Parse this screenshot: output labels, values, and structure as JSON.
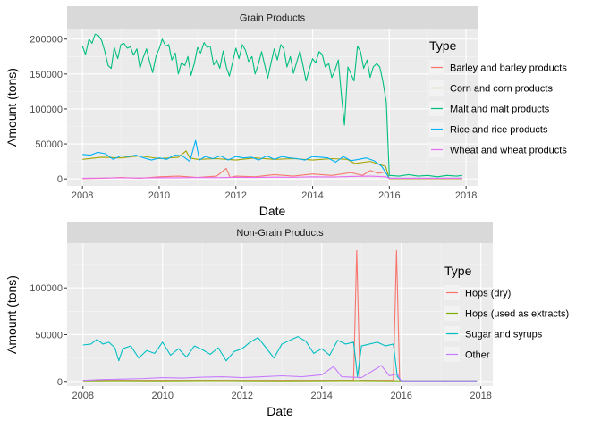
{
  "chart_data": [
    {
      "type": "line",
      "strip_title": "Grain Products",
      "xlabel": "Date",
      "ylabel": "Amount (tons)",
      "xlim": [
        2007.6,
        2018.3
      ],
      "ylim": [
        -10000,
        215000
      ],
      "x_ticks": [
        2008,
        2010,
        2012,
        2014,
        2016,
        2018
      ],
      "y_ticks": [
        0,
        50000,
        100000,
        150000,
        200000
      ],
      "legend_title": "Type",
      "legend_position": "right",
      "series": [
        {
          "name": "Barley and barley products",
          "color": "#F8766D",
          "x": [
            2008,
            2008.5,
            2009,
            2009.5,
            2010,
            2010.5,
            2011,
            2011.5,
            2011.75,
            2011.85,
            2012,
            2012.5,
            2013,
            2013.5,
            2014,
            2014.5,
            2015,
            2015.3,
            2015.5,
            2015.7,
            2015.9,
            2016,
            2016.5,
            2017,
            2017.5,
            2017.9
          ],
          "y": [
            500,
            1000,
            2000,
            1000,
            3000,
            4000,
            2000,
            4000,
            15000,
            2000,
            4000,
            3000,
            6000,
            4000,
            7000,
            5000,
            9000,
            5000,
            12000,
            8000,
            10000,
            500,
            500,
            500,
            500,
            500
          ]
        },
        {
          "name": "Corn and corn products",
          "color": "#A3A500",
          "x": [
            2008,
            2008.5,
            2009,
            2009.5,
            2010,
            2010.5,
            2010.7,
            2010.8,
            2011,
            2011.5,
            2012,
            2012.5,
            2013,
            2013.5,
            2014,
            2014.5,
            2014.9,
            2015.1,
            2015.5,
            2015.9,
            2016,
            2016.5,
            2017,
            2017.5,
            2017.9
          ],
          "y": [
            28000,
            31000,
            30000,
            33000,
            29000,
            31000,
            40000,
            30000,
            28000,
            29000,
            27000,
            30000,
            28000,
            29000,
            27000,
            29000,
            28000,
            22000,
            25000,
            18000,
            500,
            500,
            500,
            500,
            500
          ]
        },
        {
          "name": "Malt and malt products",
          "color": "#00BF7D",
          "x": [
            2008,
            2008.08,
            2008.17,
            2008.25,
            2008.33,
            2008.42,
            2008.5,
            2008.58,
            2008.67,
            2008.75,
            2008.83,
            2008.92,
            2009,
            2009.08,
            2009.17,
            2009.25,
            2009.33,
            2009.42,
            2009.5,
            2009.58,
            2009.67,
            2009.75,
            2009.83,
            2009.92,
            2010,
            2010.08,
            2010.17,
            2010.25,
            2010.33,
            2010.42,
            2010.5,
            2010.58,
            2010.67,
            2010.75,
            2010.83,
            2010.92,
            2011,
            2011.08,
            2011.17,
            2011.25,
            2011.33,
            2011.42,
            2011.5,
            2011.58,
            2011.67,
            2011.75,
            2011.83,
            2011.92,
            2012,
            2012.08,
            2012.17,
            2012.25,
            2012.33,
            2012.42,
            2012.5,
            2012.58,
            2012.67,
            2012.75,
            2012.83,
            2012.92,
            2013,
            2013.08,
            2013.17,
            2013.25,
            2013.33,
            2013.42,
            2013.5,
            2013.58,
            2013.67,
            2013.75,
            2013.83,
            2013.92,
            2014,
            2014.08,
            2014.17,
            2014.25,
            2014.33,
            2014.42,
            2014.5,
            2014.58,
            2014.67,
            2014.75,
            2014.83,
            2014.92,
            2015,
            2015.08,
            2015.17,
            2015.25,
            2015.33,
            2015.42,
            2015.5,
            2015.58,
            2015.67,
            2015.75,
            2015.83,
            2015.92,
            2016,
            2016.25,
            2016.5,
            2016.75,
            2017,
            2017.25,
            2017.5,
            2017.75,
            2017.9
          ],
          "y": [
            190000,
            178000,
            200000,
            194000,
            207000,
            205000,
            198000,
            183000,
            162000,
            158000,
            188000,
            172000,
            192000,
            194000,
            187000,
            189000,
            177000,
            186000,
            158000,
            173000,
            186000,
            168000,
            152000,
            176000,
            186000,
            200000,
            190000,
            192000,
            170000,
            180000,
            150000,
            166000,
            162000,
            175000,
            148000,
            166000,
            188000,
            180000,
            195000,
            188000,
            190000,
            163000,
            170000,
            158000,
            183000,
            160000,
            147000,
            168000,
            187000,
            172000,
            192000,
            184000,
            168000,
            175000,
            150000,
            163000,
            182000,
            163000,
            144000,
            167000,
            186000,
            170000,
            192000,
            186000,
            160000,
            175000,
            151000,
            166000,
            183000,
            162000,
            140000,
            158000,
            172000,
            166000,
            182000,
            178000,
            160000,
            165000,
            145000,
            155000,
            170000,
            120000,
            77000,
            160000,
            150000,
            140000,
            190000,
            182000,
            158000,
            170000,
            145000,
            160000,
            165000,
            160000,
            140000,
            110000,
            5000,
            4000,
            6000,
            4000,
            5000,
            3000,
            5000,
            4000,
            5000
          ]
        },
        {
          "name": "Rice and rice products",
          "color": "#00B0F6",
          "x": [
            2008,
            2008.2,
            2008.4,
            2008.6,
            2008.8,
            2009,
            2009.2,
            2009.4,
            2009.6,
            2009.8,
            2010,
            2010.2,
            2010.4,
            2010.6,
            2010.8,
            2010.95,
            2011.05,
            2011.2,
            2011.4,
            2011.6,
            2011.8,
            2012,
            2012.2,
            2012.4,
            2012.6,
            2012.8,
            2013,
            2013.2,
            2013.4,
            2013.6,
            2013.8,
            2014,
            2014.2,
            2014.4,
            2014.6,
            2014.8,
            2015,
            2015.2,
            2015.4,
            2015.6,
            2015.8,
            2016,
            2016.5,
            2017,
            2017.5,
            2017.9
          ],
          "y": [
            35000,
            34000,
            38000,
            36000,
            28000,
            33000,
            32000,
            34000,
            30000,
            27000,
            30000,
            28000,
            34000,
            33000,
            25000,
            55000,
            27000,
            32000,
            29000,
            33000,
            27000,
            32000,
            30000,
            31000,
            27000,
            33000,
            28000,
            32000,
            30000,
            29000,
            27000,
            32000,
            31000,
            30000,
            24000,
            32000,
            26000,
            28000,
            30000,
            26000,
            18000,
            1000,
            1000,
            1000,
            1000,
            1000
          ]
        },
        {
          "name": "Wheat and wheat products",
          "color": "#E76BF3",
          "x": [
            2008,
            2008.5,
            2009,
            2009.5,
            2010,
            2010.5,
            2011,
            2011.5,
            2012,
            2012.5,
            2013,
            2013.5,
            2014,
            2014.5,
            2015,
            2015.5,
            2015.9,
            2016,
            2016.5,
            2017,
            2017.5,
            2017.9
          ],
          "y": [
            1000,
            1200,
            1500,
            1300,
            1800,
            1600,
            2000,
            1800,
            2200,
            2000,
            2500,
            2300,
            3000,
            2700,
            3500,
            4000,
            3000,
            1000,
            1000,
            1000,
            1000,
            1000
          ]
        }
      ]
    },
    {
      "type": "line",
      "strip_title": "Non-Grain Products",
      "xlabel": "Date",
      "ylabel": "Amount (tons)",
      "xlim": [
        2007.6,
        2018.3
      ],
      "ylim": [
        -5000,
        148000
      ],
      "x_ticks": [
        2008,
        2010,
        2012,
        2014,
        2016,
        2018
      ],
      "y_ticks": [
        0,
        50000,
        100000
      ],
      "legend_title": "Type",
      "legend_position": "right",
      "series": [
        {
          "name": "Hops (dry)",
          "color": "#F8766D",
          "x": [
            2008,
            2009,
            2010,
            2011,
            2012,
            2013,
            2014,
            2014.8,
            2014.88,
            2014.96,
            2015.04,
            2015.5,
            2015.8,
            2015.88,
            2015.96,
            2016.04,
            2016.5,
            2017,
            2017.9
          ],
          "y": [
            1000,
            1000,
            1000,
            1000,
            1000,
            1000,
            1000,
            1000,
            140000,
            1000,
            1000,
            1000,
            1000,
            140000,
            1000,
            500,
            500,
            500,
            500
          ]
        },
        {
          "name": "Hops (used as extracts)",
          "color": "#7CAE00",
          "x": [
            2008,
            2009,
            2010,
            2011,
            2012,
            2013,
            2014,
            2015,
            2016,
            2017,
            2017.9
          ],
          "y": [
            500,
            700,
            600,
            800,
            700,
            600,
            700,
            800,
            500,
            500,
            500
          ]
        },
        {
          "name": "Sugar and syrups",
          "color": "#00BFC4",
          "x": [
            2008,
            2008.2,
            2008.35,
            2008.5,
            2008.65,
            2008.8,
            2008.9,
            2009,
            2009.2,
            2009.4,
            2009.6,
            2009.8,
            2010,
            2010.2,
            2010.4,
            2010.6,
            2010.8,
            2011,
            2011.2,
            2011.4,
            2011.6,
            2011.8,
            2012,
            2012.2,
            2012.4,
            2012.6,
            2012.8,
            2013,
            2013.2,
            2013.4,
            2013.6,
            2013.8,
            2014,
            2014.2,
            2014.4,
            2014.6,
            2014.8,
            2014.9,
            2015,
            2015.2,
            2015.4,
            2015.6,
            2015.8,
            2015.9,
            2016,
            2016.5,
            2017,
            2017.9
          ],
          "y": [
            39000,
            40000,
            45000,
            40000,
            42000,
            36000,
            22000,
            35000,
            38000,
            25000,
            33000,
            30000,
            42000,
            28000,
            35000,
            26000,
            38000,
            34000,
            29000,
            36000,
            22000,
            32000,
            35000,
            42000,
            47000,
            36000,
            25000,
            40000,
            44000,
            48000,
            43000,
            30000,
            35000,
            28000,
            44000,
            40000,
            42000,
            5000,
            38000,
            40000,
            42000,
            38000,
            40000,
            5000,
            500,
            500,
            500,
            500
          ]
        },
        {
          "name": "Other",
          "color": "#C77CFF",
          "x": [
            2008,
            2008.5,
            2009,
            2009.5,
            2010,
            2010.5,
            2011,
            2011.5,
            2012,
            2012.5,
            2013,
            2013.5,
            2014,
            2014.3,
            2014.5,
            2015,
            2015.5,
            2015.7,
            2015.9,
            2016,
            2016.5,
            2017,
            2017.9
          ],
          "y": [
            1000,
            2000,
            2500,
            3000,
            4000,
            3500,
            4500,
            5000,
            4000,
            5000,
            6000,
            5000,
            7000,
            16000,
            5000,
            4000,
            17000,
            6000,
            8000,
            500,
            500,
            500,
            500
          ]
        }
      ]
    }
  ]
}
